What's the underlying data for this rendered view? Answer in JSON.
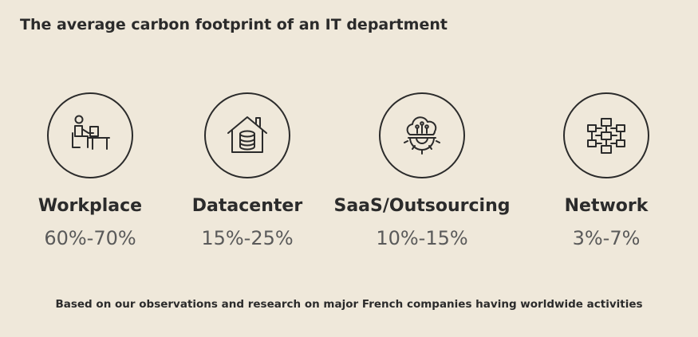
{
  "title": "The average carbon footprint of an IT department",
  "categories": [
    {
      "icon": "workplace-icon",
      "label": "Workplace",
      "share": "60%-70%"
    },
    {
      "icon": "datacenter-icon",
      "label": "Datacenter",
      "share": "15%-25%"
    },
    {
      "icon": "saas-cloud-icon",
      "label": "SaaS/Outsourcing",
      "share": "10%-15%"
    },
    {
      "icon": "network-icon",
      "label": "Network",
      "share": "3%-7%"
    }
  ],
  "footnote": "Based on our observations and research on major French companies having worldwide activities"
}
